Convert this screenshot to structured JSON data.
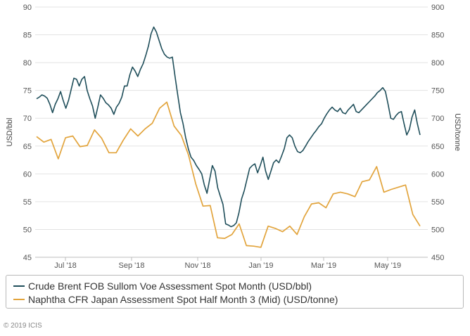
{
  "chart_data": {
    "type": "line",
    "x_tick_labels": [
      "Jul '18",
      "Sep '18",
      "Nov '18",
      "Jan '19",
      "Mar '19",
      "May '19"
    ],
    "ylabel_left": "USD/bbl",
    "ylabel_right": "USD/tonne",
    "ylim_left": [
      45,
      90
    ],
    "ylim_right": [
      450,
      900
    ],
    "yticks_left": [
      45,
      50,
      55,
      60,
      65,
      70,
      75,
      80,
      85,
      90
    ],
    "yticks_right": [
      450,
      500,
      550,
      600,
      650,
      700,
      750,
      800,
      850,
      900
    ],
    "grid": "horizontal",
    "series": [
      {
        "name": "Crude Brent FOB Sullom Voe Assessment Spot Month (USD/bbl)",
        "axis": "left",
        "color": "#1f4e5a",
        "x_index_range": [
          0,
          144
        ],
        "values": [
          73.5,
          73.8,
          74.2,
          74.0,
          73.6,
          72.5,
          71.0,
          72.5,
          73.5,
          74.8,
          73.2,
          71.8,
          73.2,
          75.2,
          77.2,
          77.0,
          75.8,
          77.0,
          77.5,
          75.0,
          73.5,
          72.2,
          70.0,
          72.0,
          74.2,
          73.6,
          72.8,
          72.4,
          71.8,
          70.7,
          72.0,
          72.7,
          73.8,
          75.8,
          75.8,
          77.8,
          79.2,
          78.5,
          77.5,
          78.8,
          79.8,
          81.3,
          83.0,
          85.2,
          86.4,
          85.5,
          84.0,
          82.5,
          81.5,
          81.0,
          80.8,
          81.0,
          77.5,
          74.2,
          71.0,
          69.0,
          66.5,
          64.5,
          63.0,
          62.4,
          61.5,
          60.8,
          60.0,
          58.0,
          56.5,
          59.0,
          61.5,
          60.5,
          57.5,
          56.0,
          54.5,
          51.0,
          50.8,
          50.5,
          50.7,
          51.2,
          53.0,
          55.5,
          57.0,
          59.0,
          61.0,
          61.5,
          61.8,
          60.2,
          61.5,
          63.0,
          60.5,
          59.0,
          60.5,
          62.0,
          62.5,
          62.0,
          63.2,
          64.5,
          66.5,
          67.0,
          66.5,
          65.0,
          64.0,
          63.8,
          64.2,
          65.0,
          65.8,
          66.5,
          67.2,
          67.8,
          68.5,
          69.0,
          70.0,
          70.8,
          71.5,
          72.0,
          71.5,
          71.2,
          71.8,
          71.0,
          70.8,
          71.5,
          72.0,
          72.5,
          71.2,
          71.0,
          71.5,
          72.0,
          72.5,
          73.0,
          73.5,
          74.0,
          74.6,
          75.0,
          75.5,
          74.8,
          72.5,
          70.0,
          69.8,
          70.5,
          71.0,
          71.2,
          69.0,
          67.0,
          68.0,
          70.2,
          71.5,
          69.0,
          67.0
        ]
      },
      {
        "name": "Naphtha CFR Japan Assessment Spot Half Month 3 (Mid) (USD/tonne)",
        "axis": "right",
        "color": "#e2a43c",
        "x_index_range": [
          0,
          144
        ],
        "values": [
          667,
          657,
          662,
          627,
          665,
          668,
          649,
          651,
          679,
          664,
          638,
          638,
          661,
          681,
          668,
          681,
          691,
          718,
          729,
          686,
          669,
          634,
          582,
          542,
          543,
          485,
          484,
          491,
          510,
          471,
          470,
          468,
          506,
          502,
          496,
          506,
          491,
          523,
          546,
          548,
          539,
          564,
          567,
          564,
          559,
          586,
          589,
          613,
          567,
          572,
          576,
          580,
          527,
          506
        ]
      }
    ]
  },
  "legend": {
    "item_1": "Crude Brent FOB Sullom Voe Assessment Spot Month (USD/bbl)",
    "item_2": "Naphtha CFR Japan Assessment Spot Half Month 3 (Mid) (USD/tonne)"
  },
  "copyright": "© 2019 ICIS"
}
